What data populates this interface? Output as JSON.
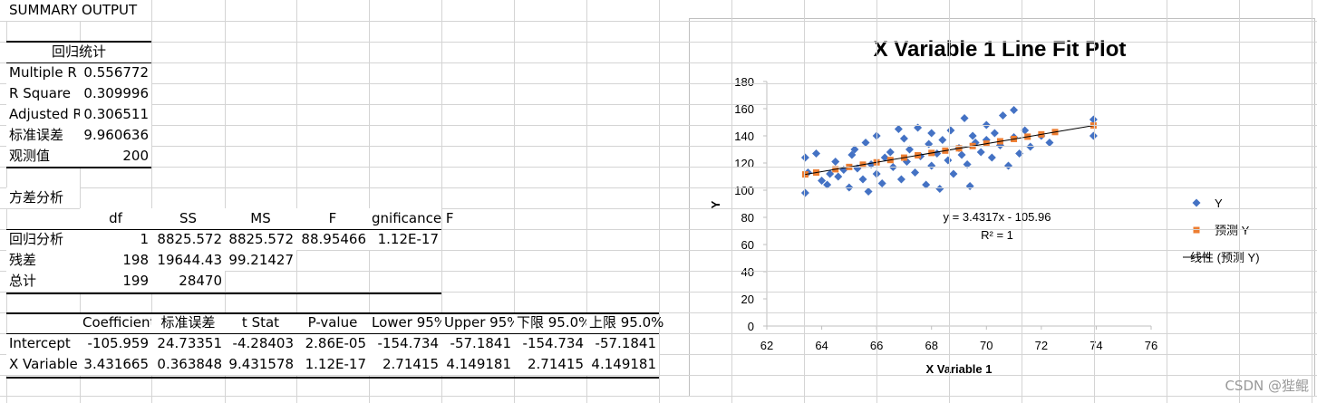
{
  "sheet": {
    "title": "SUMMARY OUTPUT",
    "regression_stats": {
      "header": "回归统计",
      "rows": [
        [
          "Multiple R",
          "0.556772"
        ],
        [
          "R Square",
          "0.309996"
        ],
        [
          "Adjusted R",
          "0.306511"
        ],
        [
          "标准误差",
          "9.960636"
        ],
        [
          "观测值",
          "200"
        ]
      ]
    },
    "anova": {
      "title": "方差分析",
      "columns": [
        "df",
        "SS",
        "MS",
        "F",
        "gnificance F"
      ],
      "rows": [
        [
          "回归分析",
          "1",
          "8825.572",
          "8825.572",
          "88.95466",
          "1.12E-17"
        ],
        [
          "残差",
          "198",
          "19644.43",
          "99.21427"
        ],
        [
          "总计",
          "199",
          "28470"
        ]
      ]
    },
    "coefficients": {
      "columns": [
        "Coefficient",
        "标准误差",
        "t Stat",
        "P-value",
        "Lower 95%",
        "Upper 95%",
        "下限 95.0%",
        "上限 95.0%"
      ],
      "rows": [
        [
          "Intercept",
          "-105.959",
          "24.73351",
          "-4.28403",
          "2.86E-05",
          "-154.734",
          "-57.1841",
          "-154.734",
          "-57.1841"
        ],
        [
          "X Variable",
          "3.431665",
          "0.363848",
          "9.431578",
          "1.12E-17",
          "2.71415",
          "4.149181",
          "2.71415",
          "4.149181"
        ]
      ]
    },
    "watermark": "CSDN @狴鲲"
  },
  "chart_data": {
    "type": "scatter",
    "title": "X Variable 1 Line Fit  Plot",
    "xlabel": "X Variable 1",
    "ylabel": "Y",
    "xlim": [
      62,
      76
    ],
    "xticks": [
      62,
      64,
      66,
      68,
      70,
      72,
      74,
      76
    ],
    "ylim": [
      0,
      180
    ],
    "yticks": [
      0,
      20,
      40,
      60,
      80,
      100,
      120,
      140,
      160,
      180
    ],
    "series": [
      {
        "name": "Y",
        "color": "#4472c4",
        "marker": "diamond",
        "x": [
          63.4,
          63.4,
          63.5,
          63.8,
          64,
          64.2,
          64.3,
          64.5,
          64.6,
          64.8,
          65,
          65.1,
          65.2,
          65.3,
          65.5,
          65.6,
          65.7,
          65.8,
          66,
          66,
          66.2,
          66.3,
          66.5,
          66.6,
          66.8,
          66.9,
          67,
          67.1,
          67.2,
          67.4,
          67.5,
          67.6,
          67.8,
          67.9,
          68,
          68,
          68.2,
          68.3,
          68.4,
          68.6,
          68.7,
          68.8,
          69,
          69.1,
          69.2,
          69.3,
          69.4,
          69.5,
          69.6,
          69.8,
          70,
          70,
          70.2,
          70.3,
          70.5,
          70.6,
          70.8,
          71,
          71,
          71.2,
          71.4,
          71.6,
          72,
          72.3,
          73.9,
          73.9
        ],
        "values": [
          98,
          124,
          113,
          127,
          107,
          104,
          112,
          121,
          110,
          115,
          102,
          126,
          130,
          116,
          108,
          135,
          99,
          119,
          140,
          112,
          105,
          124,
          128,
          117,
          145,
          108,
          138,
          121,
          130,
          113,
          146,
          125,
          104,
          134,
          142,
          118,
          127,
          101,
          137,
          122,
          144,
          112,
          131,
          126,
          153,
          119,
          103,
          140,
          135,
          128,
          148,
          137,
          124,
          142,
          133,
          155,
          118,
          159,
          139,
          127,
          144,
          132,
          140,
          135,
          152,
          140
        ]
      },
      {
        "name": "预测 Y",
        "color": "#ed7d31",
        "marker": "square",
        "x": [
          63.4,
          63.8,
          64.5,
          65,
          65.5,
          66,
          66.5,
          67,
          67.5,
          68,
          68.5,
          69,
          69.5,
          70,
          70.5,
          71,
          71.5,
          72,
          72.5,
          73.9
        ],
        "values": [
          111.6,
          112.98,
          115.4,
          117.1,
          118.8,
          120.5,
          122.2,
          123.96,
          125.7,
          127.4,
          129.1,
          130.8,
          132.5,
          134.3,
          136.0,
          137.7,
          139.4,
          141.1,
          142.8,
          147.6
        ]
      }
    ],
    "trendline": {
      "name": "线性 (预测 Y)",
      "color": "#000000",
      "equation": "y = 3.4317x - 105.96",
      "r2": "R² = 1"
    }
  }
}
